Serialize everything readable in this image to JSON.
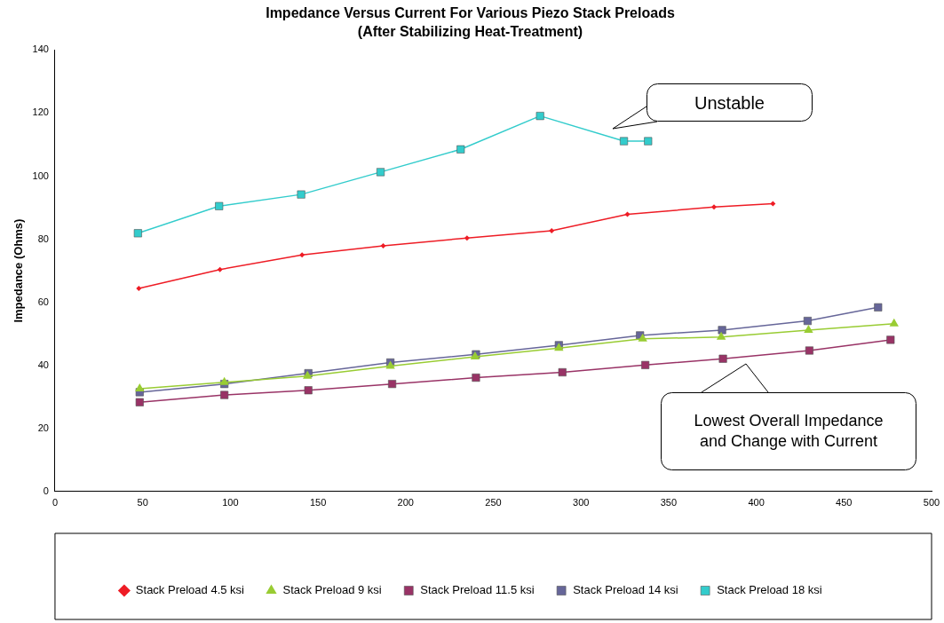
{
  "chart_data": {
    "type": "line",
    "title": "Impedance Versus Current For Various Piezo Stack Preloads",
    "subtitle": "(After Stabilizing Heat-Treatment)",
    "ylabel": "Impedance (Ohms)",
    "xlim": [
      0,
      500
    ],
    "xticks": [
      0,
      50,
      100,
      150,
      200,
      250,
      300,
      350,
      400,
      450,
      500
    ],
    "ylim": [
      0,
      140
    ],
    "yticks": [
      0,
      20,
      40,
      60,
      80,
      100,
      120,
      140
    ],
    "grid": false,
    "legend": "bottom",
    "series": [
      {
        "name": "Stack Preload 4.5 ksi",
        "color": "#ee1c25",
        "marker": "diamond",
        "x": [
          47.8,
          94.1,
          140.9,
          187.2,
          235,
          283.3,
          326.5,
          375.9,
          409.5
        ],
        "values": [
          64.4,
          70.4,
          75,
          77.9,
          80.4,
          82.7,
          87.9,
          90.2,
          91.3
        ]
      },
      {
        "name": "Stack Preload 9 ksi",
        "color": "#99cc33",
        "marker": "triangle",
        "x": [
          48.3,
          96.6,
          144,
          191.3,
          239.6,
          287.4,
          335.2,
          380,
          429.8,
          478.6
        ],
        "values": [
          32.6,
          34.6,
          36.6,
          39.8,
          42.7,
          45.5,
          48.4,
          49,
          51.2,
          53.2
        ]
      },
      {
        "name": "Stack Preload 11.5 ksi",
        "color": "#993366",
        "marker": "square",
        "x": [
          48.3,
          96.6,
          144.5,
          192.3,
          240.1,
          289.4,
          336.7,
          381,
          430.3,
          476.6
        ],
        "values": [
          28.3,
          30.6,
          32.1,
          34.1,
          36.1,
          37.8,
          40.1,
          42.1,
          44.7,
          48.1
        ]
      },
      {
        "name": "Stack Preload 14 ksi",
        "color": "#666699",
        "marker": "square",
        "x": [
          48.3,
          96.6,
          144.5,
          191.3,
          240.1,
          287.4,
          333.7,
          380.5,
          429.3,
          469.5
        ],
        "values": [
          31.5,
          34.1,
          37.5,
          40.9,
          43.5,
          46.4,
          49.5,
          51.2,
          54.1,
          58.4
        ]
      },
      {
        "name": "Stack Preload 18 ksi",
        "color": "#33cccc",
        "marker": "square",
        "x": [
          47.3,
          93.6,
          140.4,
          185.7,
          231.4,
          276.7,
          324.5,
          338.3
        ],
        "values": [
          81.9,
          90.5,
          94.2,
          101.3,
          108.5,
          119.1,
          111.1,
          111.1
        ]
      }
    ],
    "annotations": [
      "Unstable",
      "Lowest Overall Impedance and Change with Current"
    ]
  }
}
